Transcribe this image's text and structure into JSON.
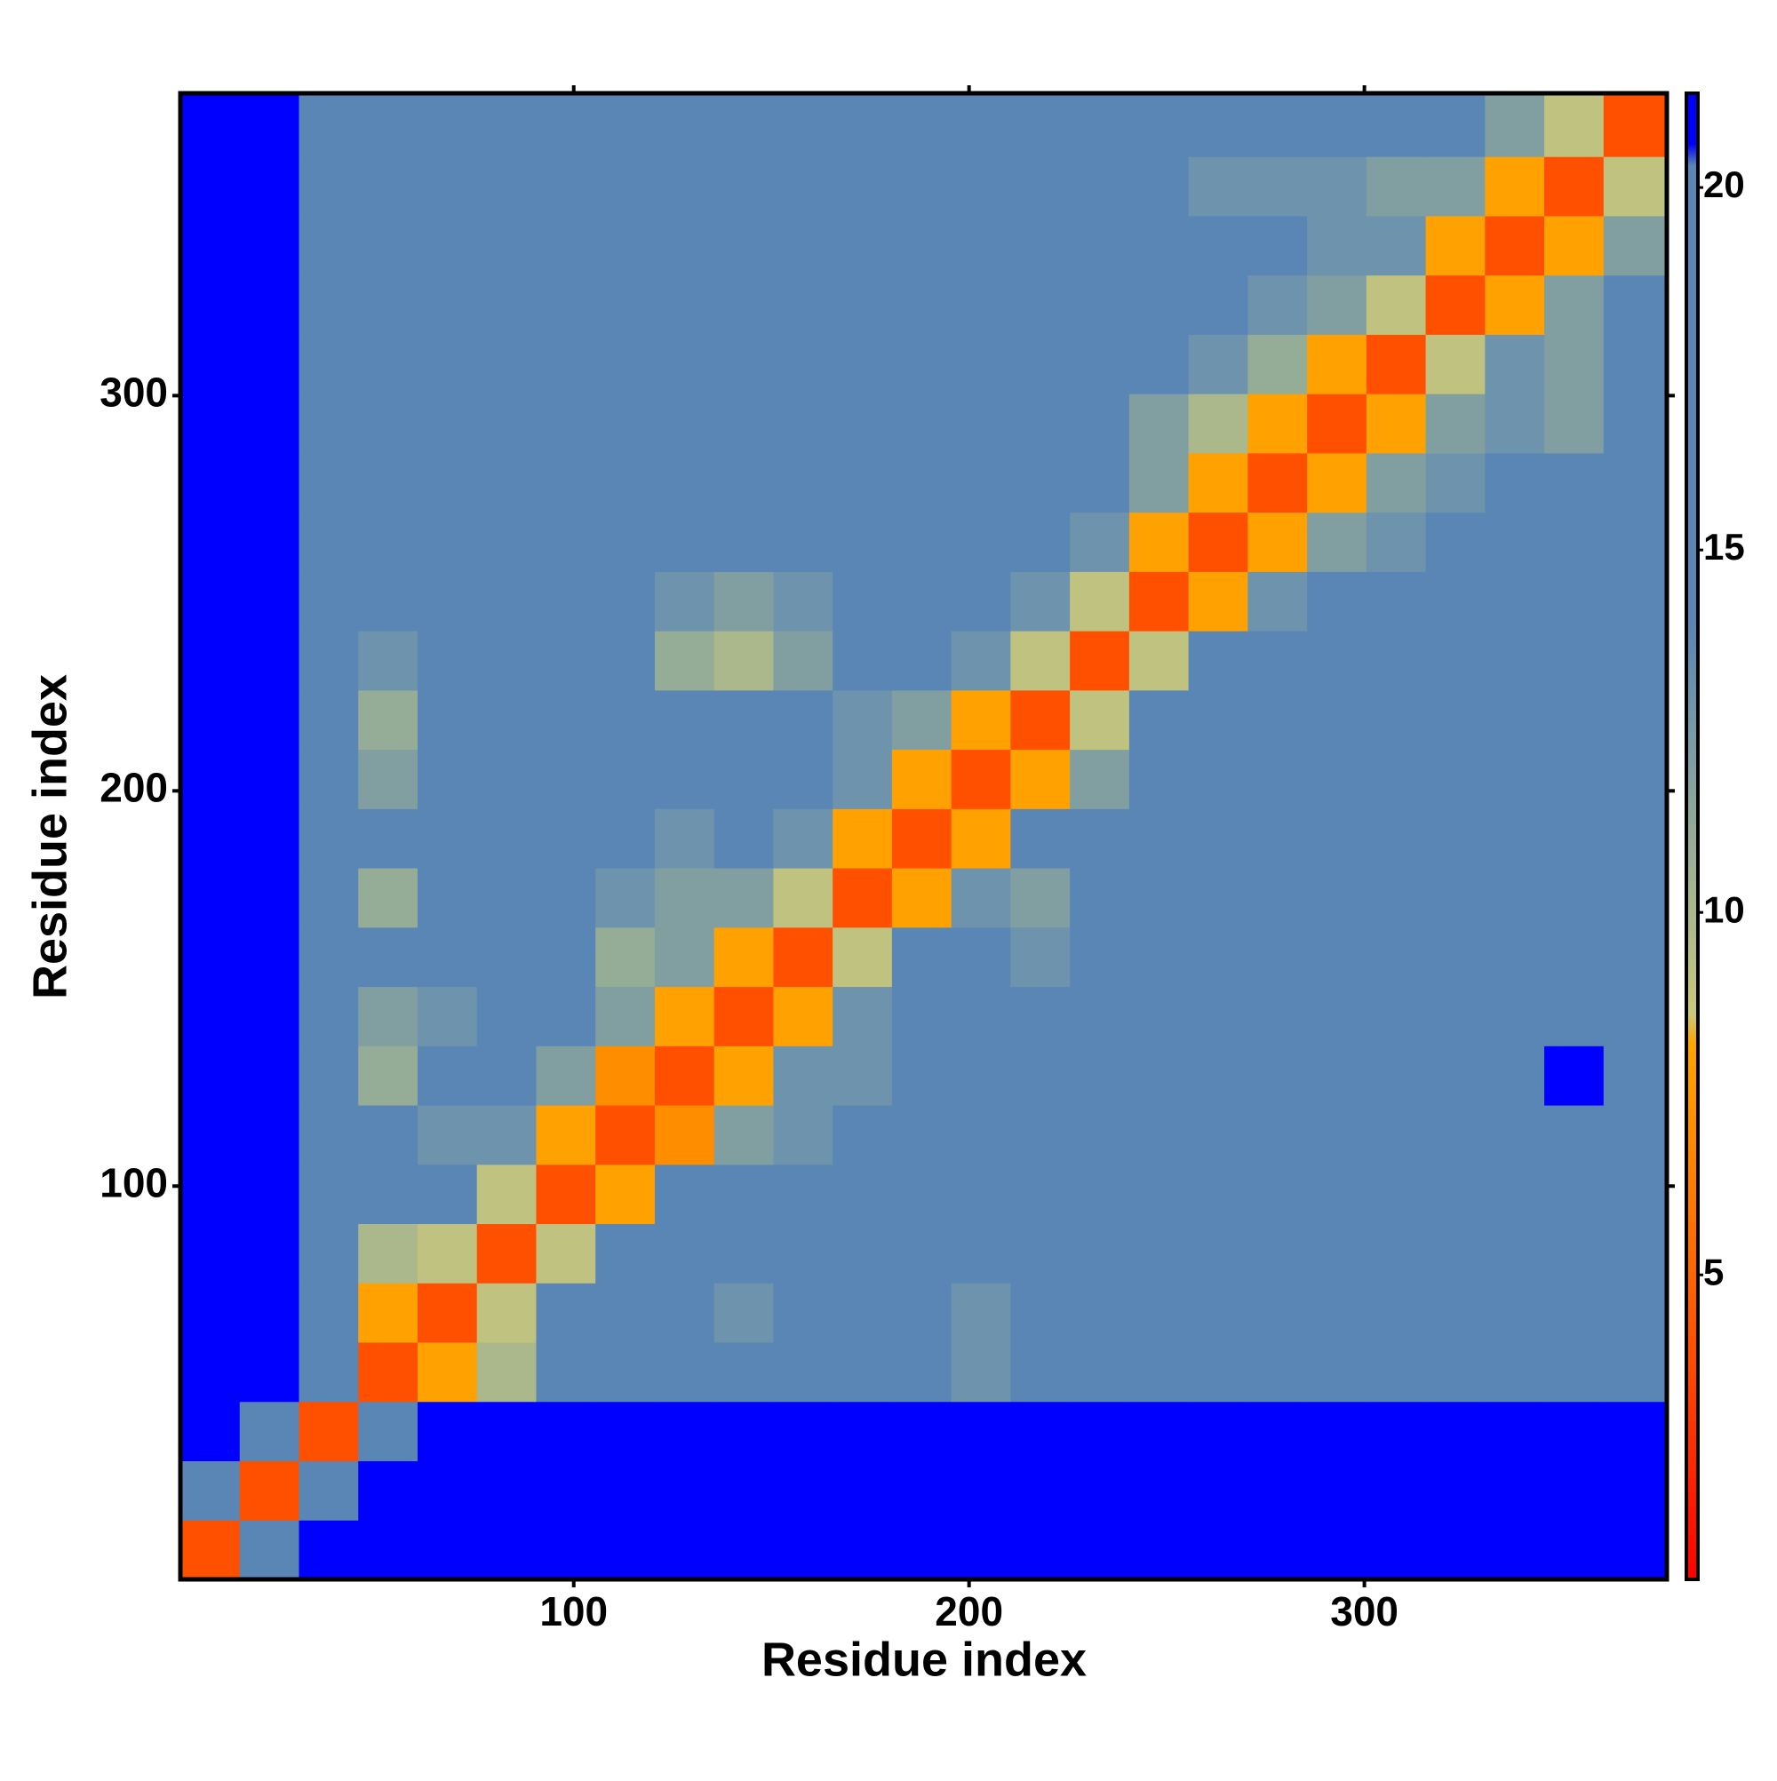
{
  "chart_data": {
    "type": "heatmap",
    "xlabel": "Residue index",
    "ylabel": "Residue index",
    "xlim": [
      0.5,
      376.5
    ],
    "ylim": [
      0.5,
      376.5
    ],
    "xticks": [
      100,
      200,
      300
    ],
    "yticks": [
      100,
      200,
      300
    ],
    "bins": [
      0.5,
      15.5,
      30.5,
      45.5,
      60.5,
      75.5,
      90.5,
      105.5,
      120.5,
      135.5,
      150.5,
      165.5,
      180.5,
      195.5,
      210.5,
      225.5,
      240.5,
      255.5,
      270.5,
      285.5,
      300.5,
      315.5,
      330.5,
      345.5,
      360.5,
      376.5
    ],
    "z": [
      [
        4,
        19,
        21,
        21,
        21,
        21,
        21,
        21,
        21,
        21,
        21,
        21,
        21,
        21,
        21,
        21,
        21,
        21,
        21,
        21,
        21,
        21,
        21,
        21,
        21
      ],
      [
        19,
        4,
        19,
        21,
        21,
        21,
        21,
        21,
        21,
        21,
        21,
        21,
        21,
        21,
        21,
        21,
        21,
        21,
        21,
        21,
        21,
        21,
        21,
        21,
        21
      ],
      [
        21,
        19,
        4,
        14,
        21,
        21,
        21,
        21,
        21,
        21,
        21,
        21,
        21,
        21,
        21,
        21,
        21,
        21,
        21,
        21,
        21,
        21,
        21,
        21,
        21
      ],
      [
        21,
        21,
        18,
        4,
        8,
        10,
        14,
        17,
        15,
        17,
        17,
        17,
        16,
        13,
        17,
        17,
        17,
        18,
        19,
        19,
        19,
        19,
        19,
        20,
        20
      ],
      [
        21,
        21,
        17,
        8,
        4,
        9,
        14,
        17,
        14,
        13,
        15,
        17,
        17,
        13,
        17,
        17,
        18,
        19,
        19,
        20,
        20,
        19,
        20,
        20,
        20
      ],
      [
        21,
        21,
        16,
        10,
        9,
        4,
        9,
        14,
        17,
        17,
        17,
        17,
        17,
        17,
        17,
        17,
        18,
        19,
        20,
        20,
        19,
        20,
        19,
        20,
        20
      ],
      [
        21,
        21,
        17,
        14,
        14,
        9,
        4,
        8,
        17,
        17,
        17,
        17,
        17,
        17,
        17,
        17,
        19,
        19,
        19,
        20,
        20,
        20,
        20,
        19,
        20
      ],
      [
        21,
        21,
        17,
        15,
        13,
        13,
        8,
        4,
        7,
        12,
        13,
        17,
        17,
        17,
        17,
        17,
        18,
        19,
        19,
        19,
        20,
        20,
        20,
        20,
        20
      ],
      [
        21,
        21,
        17,
        11,
        14,
        14,
        12,
        7,
        4,
        8,
        13,
        13,
        17,
        17,
        17,
        17,
        18,
        18,
        19,
        20,
        20,
        20,
        20,
        21,
        20
      ],
      [
        21,
        21,
        16,
        12,
        13,
        17,
        16,
        12,
        8,
        4,
        8,
        13,
        15,
        17,
        17,
        17,
        17,
        18,
        19,
        19,
        19,
        20,
        20,
        20,
        20
      ],
      [
        21,
        21,
        17,
        17,
        17,
        17,
        17,
        11,
        12,
        8,
        4,
        9,
        14,
        17,
        13,
        17,
        17,
        17,
        18,
        19,
        19,
        19,
        20,
        20,
        20
      ],
      [
        21,
        21,
        17,
        11,
        17,
        17,
        17,
        13,
        12,
        12,
        9,
        4,
        8,
        13,
        12,
        17,
        17,
        18,
        19,
        19,
        19,
        20,
        20,
        20,
        20
      ],
      [
        21,
        21,
        17,
        17,
        17,
        17,
        17,
        17,
        13,
        17,
        13,
        8,
        4,
        8,
        17,
        17,
        18,
        18,
        19,
        19,
        19,
        20,
        20,
        20,
        20
      ],
      [
        21,
        21,
        15,
        12,
        17,
        17,
        19,
        17,
        17,
        17,
        17,
        13,
        8,
        4,
        8,
        12,
        17,
        17,
        18,
        19,
        19,
        19,
        19,
        20,
        20
      ],
      [
        21,
        21,
        16,
        11,
        14,
        17,
        17,
        17,
        17,
        17,
        17,
        13,
        12,
        8,
        4,
        9,
        17,
        17,
        18,
        18,
        19,
        19,
        19,
        20,
        20
      ],
      [
        21,
        21,
        17,
        13,
        15,
        17,
        17,
        17,
        11,
        10,
        12,
        17,
        14,
        13,
        9,
        4,
        9,
        17,
        17,
        17,
        18,
        19,
        19,
        20,
        20
      ],
      [
        21,
        21,
        17,
        17,
        17,
        18,
        19,
        17,
        13,
        12,
        13,
        17,
        17,
        17,
        13,
        9,
        4,
        8,
        13,
        17,
        17,
        17,
        17,
        18,
        18
      ],
      [
        21,
        21,
        17,
        17,
        17,
        18,
        18,
        19,
        17,
        17,
        18,
        18,
        18,
        18,
        17,
        13,
        8,
        4,
        8,
        12,
        13,
        17,
        17,
        17,
        14
      ],
      [
        21,
        21,
        17,
        17,
        18,
        18,
        19,
        19,
        18,
        18,
        19,
        18,
        18,
        17,
        17,
        15,
        12,
        8,
        4,
        8,
        12,
        13,
        15,
        17,
        17
      ],
      [
        21,
        21,
        18,
        18,
        19,
        19,
        19,
        19,
        18,
        18,
        19,
        18,
        18,
        18,
        17,
        17,
        12,
        10,
        8,
        4,
        8,
        12,
        13,
        12,
        17
      ],
      [
        21,
        21,
        18,
        19,
        19,
        19,
        19,
        19,
        19,
        19,
        19,
        18,
        18,
        18,
        17,
        17,
        14,
        13,
        11,
        8,
        4,
        9,
        13,
        12,
        17
      ],
      [
        21,
        21,
        19,
        19,
        19,
        20,
        19,
        19,
        19,
        20,
        19,
        19,
        19,
        19,
        18,
        17,
        15,
        14,
        13,
        12,
        9,
        4,
        8,
        12,
        15
      ],
      [
        21,
        21,
        19,
        19,
        20,
        20,
        20,
        20,
        20,
        19,
        19,
        20,
        20,
        19,
        18,
        17,
        17,
        15,
        14,
        13,
        13,
        8,
        4,
        8,
        12
      ],
      [
        21,
        21,
        19,
        19,
        20,
        20,
        19,
        20,
        20,
        20,
        20,
        20,
        19,
        19,
        18,
        17,
        17,
        13,
        13,
        13,
        12,
        12,
        8,
        4,
        9
      ],
      [
        21,
        21,
        19,
        19,
        19,
        19,
        19,
        20,
        19,
        19,
        19,
        20,
        19,
        20,
        19,
        17,
        17,
        16,
        15,
        14,
        17,
        15,
        12,
        9,
        4
      ]
    ],
    "colorbar": {
      "clim": [
        0.8,
        21.3
      ],
      "ticks": [
        5,
        10,
        15,
        20
      ],
      "colorscale": [
        {
          "value": 0.8,
          "color": "#ff0000"
        },
        {
          "value": 4,
          "color": "#ff5000"
        },
        {
          "value": 8.2,
          "color": "#ffa500"
        },
        {
          "value": 8.6,
          "color": "#c9c87a"
        },
        {
          "value": 10.5,
          "color": "#9fb292"
        },
        {
          "value": 14,
          "color": "#5a86b6"
        },
        {
          "value": 20.3,
          "color": "#5a86b6"
        },
        {
          "value": 20.6,
          "color": "#0000ff"
        },
        {
          "value": 21.3,
          "color": "#0000ff"
        }
      ]
    }
  }
}
